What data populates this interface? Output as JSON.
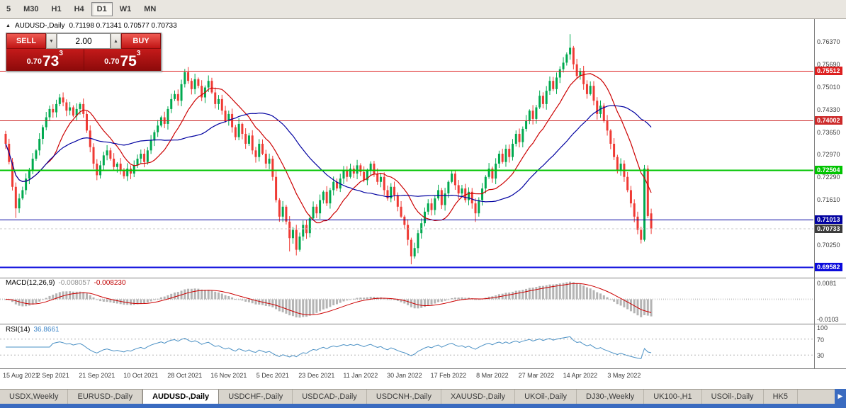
{
  "toolbar": {
    "timeframes": [
      {
        "label": "5",
        "active": false
      },
      {
        "label": "M30",
        "active": false
      },
      {
        "label": "H1",
        "active": false
      },
      {
        "label": "H4",
        "active": false
      },
      {
        "label": "D1",
        "active": true
      },
      {
        "label": "W1",
        "active": false
      },
      {
        "label": "MN",
        "active": false
      }
    ]
  },
  "icons": {
    "collapse_triangle": "▲",
    "spinner_down": "▼",
    "spinner_up": "▲",
    "tab_scroll_right": "▶"
  },
  "trade_panel": {
    "sell_label": "SELL",
    "buy_label": "BUY",
    "volume": "2.00",
    "sell_price": {
      "prefix": "0.70",
      "big": "73",
      "sup": "3"
    },
    "buy_price": {
      "prefix": "0.70",
      "big": "75",
      "sup": "3"
    }
  },
  "tabs": {
    "active_index": 2,
    "items": [
      "USDX,Weekly",
      "EURUSD-,Daily",
      "AUDUSD-,Daily",
      "USDCHF-,Daily",
      "USDCAD-,Daily",
      "USDCNH-,Daily",
      "XAUUSD-,Daily",
      "UKOil-,Daily",
      "DJ30-,Weekly",
      "UK100-,H1",
      "USOil-,Daily",
      "HK5"
    ]
  },
  "chart_data": {
    "type": "candlestick",
    "symbol": "AUDUSD-",
    "timeframe": "Daily",
    "title_text": "AUDUSD-,Daily",
    "ohlc_text": "0.71198 0.71341 0.70577 0.70733",
    "last_candle": {
      "open": 0.71198,
      "high": 0.71341,
      "low": 0.70577,
      "close": 0.70733
    },
    "price_axis": {
      "min": 0.693,
      "max": 0.77,
      "labels": [
        "0.76370",
        "0.75690",
        "0.75010",
        "0.74330",
        "0.73650",
        "0.72970",
        "0.72290",
        "0.71610",
        "0.70250"
      ]
    },
    "x_axis": {
      "labels": [
        {
          "text": "15 Aug 2021",
          "i": 1
        },
        {
          "text": "2 Sep 2021",
          "i": 14
        },
        {
          "text": "21 Sep 2021",
          "i": 27
        },
        {
          "text": "10 Oct 2021",
          "i": 40
        },
        {
          "text": "28 Oct 2021",
          "i": 53
        },
        {
          "text": "16 Nov 2021",
          "i": 66
        },
        {
          "text": "5 Dec 2021",
          "i": 79
        },
        {
          "text": "23 Dec 2021",
          "i": 92
        },
        {
          "text": "11 Jan 2022",
          "i": 105
        },
        {
          "text": "30 Jan 2022",
          "i": 118
        },
        {
          "text": "17 Feb 2022",
          "i": 131
        },
        {
          "text": "8 Mar 2022",
          "i": 144
        },
        {
          "text": "27 Mar 2022",
          "i": 157
        },
        {
          "text": "14 Apr 2022",
          "i": 170
        },
        {
          "text": "3 May 2022",
          "i": 183
        }
      ]
    },
    "candles": {
      "first_open": 0.736,
      "closes": [
        0.733,
        0.7275,
        0.72,
        0.7135,
        0.7165,
        0.719,
        0.7225,
        0.725,
        0.7285,
        0.731,
        0.7345,
        0.738,
        0.741,
        0.7435,
        0.7425,
        0.745,
        0.747,
        0.7455,
        0.743,
        0.744,
        0.7415,
        0.7435,
        0.745,
        0.742,
        0.737,
        0.732,
        0.727,
        0.7235,
        0.7265,
        0.7295,
        0.731,
        0.7285,
        0.726,
        0.727,
        0.725,
        0.7232,
        0.7255,
        0.724,
        0.7265,
        0.7285,
        0.73,
        0.7275,
        0.731,
        0.734,
        0.7365,
        0.7385,
        0.741,
        0.739,
        0.7435,
        0.7465,
        0.748,
        0.746,
        0.751,
        0.7546,
        0.752,
        0.7495,
        0.7525,
        0.7505,
        0.747,
        0.75,
        0.752,
        0.7485,
        0.745,
        0.7465,
        0.743,
        0.74,
        0.742,
        0.738,
        0.735,
        0.739,
        0.736,
        0.733,
        0.7355,
        0.731,
        0.729,
        0.733,
        0.73,
        0.727,
        0.7285,
        0.723,
        0.716,
        0.711,
        0.714,
        0.7095,
        0.7045,
        0.707,
        0.701,
        0.705,
        0.7085,
        0.706,
        0.7105,
        0.714,
        0.712,
        0.716,
        0.7185,
        0.715,
        0.719,
        0.7215,
        0.7195,
        0.7225,
        0.725,
        0.723,
        0.7255,
        0.724,
        0.7265,
        0.7245,
        0.722,
        0.725,
        0.727,
        0.724,
        0.7215,
        0.723,
        0.719,
        0.7165,
        0.72,
        0.7175,
        0.714,
        0.711,
        0.7085,
        0.704,
        0.699,
        0.7015,
        0.706,
        0.709,
        0.7125,
        0.715,
        0.713,
        0.7165,
        0.719,
        0.7145,
        0.718,
        0.7215,
        0.724,
        0.7205,
        0.718,
        0.7195,
        0.716,
        0.7185,
        0.715,
        0.712,
        0.716,
        0.7195,
        0.723,
        0.7255,
        0.7225,
        0.727,
        0.73,
        0.7275,
        0.7315,
        0.729,
        0.733,
        0.736,
        0.7335,
        0.7375,
        0.74,
        0.743,
        0.7405,
        0.744,
        0.7475,
        0.745,
        0.749,
        0.752,
        0.7495,
        0.753,
        0.7555,
        0.7575,
        0.76,
        0.762,
        0.757,
        0.7535,
        0.755,
        0.751,
        0.748,
        0.7505,
        0.746,
        0.742,
        0.7445,
        0.74,
        0.737,
        0.733,
        0.729,
        0.725,
        0.727,
        0.723,
        0.719,
        0.715,
        0.711,
        0.707,
        0.704,
        0.7255,
        0.7112,
        0.70733
      ],
      "overrides": {
        "3": {
          "low": 0.7106
        },
        "16": {
          "high": 0.748
        },
        "27": {
          "low": 0.722
        },
        "35": {
          "low": 0.7224
        },
        "53": {
          "high": 0.7556
        },
        "84": {
          "low": 0.7005
        },
        "86": {
          "low": 0.6993
        },
        "108": {
          "high": 0.7277
        },
        "120": {
          "low": 0.6966
        },
        "132": {
          "high": 0.7249
        },
        "139": {
          "low": 0.7094
        },
        "167": {
          "high": 0.7661
        },
        "188": {
          "low": 0.7029
        },
        "189": {
          "high": 0.7266,
          "low": 0.7035
        },
        "190": {
          "high": 0.7265,
          "low": 0.7106
        },
        "191": {
          "open": 0.71198,
          "high": 0.71341,
          "low": 0.70577
        }
      }
    },
    "hlines": [
      {
        "price": 0.75512,
        "label": "0.75512",
        "color": "#dd2020",
        "width": 1
      },
      {
        "price": 0.74002,
        "label": "0.74002",
        "color": "#cc2a2a",
        "width": 1
      },
      {
        "price": 0.72504,
        "label": "0.72504",
        "color": "#00c400",
        "width": 2
      },
      {
        "price": 0.71013,
        "label": "0.71013",
        "color": "#0000a0",
        "width": 1
      },
      {
        "price": 0.69582,
        "label": "0.69582",
        "color": "#0b0bdc",
        "width": 2
      }
    ],
    "current_price": {
      "value": 0.70733,
      "label": "0.70733",
      "color": "#3c3c3c"
    },
    "colors": {
      "up": "#00a94f",
      "down": "#ef3a34",
      "ma_fast": "#cc0000",
      "ma_slow": "#0000a0",
      "macd_hist": "#b4b4b4",
      "macd_signal": "#cc0000",
      "rsi": "#4a90c4",
      "separator": "#808080",
      "bid_line": "#c8c8c8"
    },
    "indicators": {
      "ma_fast": {
        "period": 13
      },
      "ma_slow": {
        "period": 34
      },
      "macd": {
        "label": "MACD(12,26,9)",
        "value_main": "-0.008057",
        "value_signal": "-0.008230",
        "fast": 12,
        "slow": 26,
        "signal": 9,
        "axis_labels": [
          {
            "text": "0.0081",
            "value": 0.0081
          },
          {
            "text": "-0.0103",
            "value": -0.0103
          }
        ]
      },
      "rsi": {
        "label": "RSI(14)",
        "value": "36.8661",
        "period": 14,
        "levels": [
          70,
          30
        ],
        "axis_labels": [
          {
            "text": "100",
            "value": 100
          },
          {
            "text": "70",
            "value": 70
          },
          {
            "text": "30",
            "value": 30
          }
        ]
      }
    }
  }
}
